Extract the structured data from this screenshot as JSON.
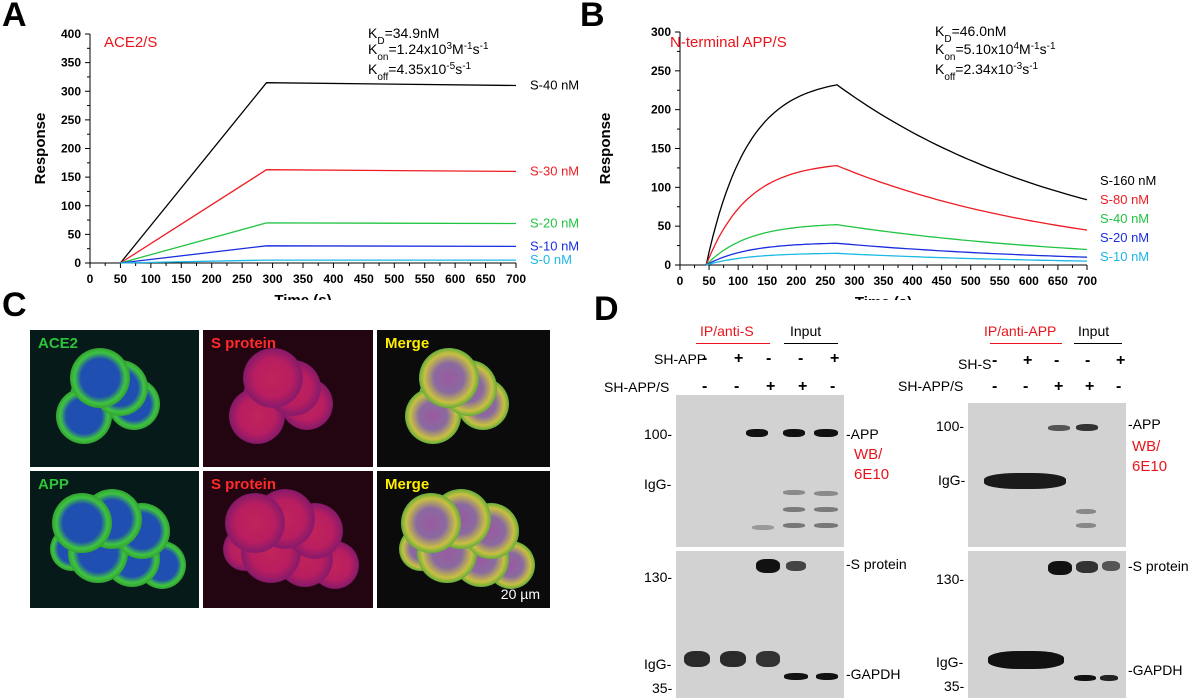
{
  "panels": {
    "a": "A",
    "b": "B",
    "c": "C",
    "d": "D"
  },
  "chart_data": [
    {
      "type": "line",
      "panel": "A",
      "label": "ACE2/S",
      "label_color": "#e8141b",
      "kinetics": [
        "K_D=34.9 nM",
        "K_on=1.24x10^3 M^-1 s^-1",
        "K_off=4.35x10^-5 s^-1"
      ],
      "xlabel": "Time (s)",
      "ylabel": "Response",
      "xlim": [
        0,
        700
      ],
      "ylim": [
        0,
        400
      ],
      "xticks": [
        0,
        50,
        100,
        150,
        200,
        250,
        300,
        350,
        400,
        450,
        500,
        550,
        600,
        650,
        700
      ],
      "yticks": [
        0,
        50,
        100,
        150,
        200,
        250,
        300,
        350,
        400
      ],
      "association_start": 50,
      "dissociation_start": 290,
      "kinetic_model": "linear",
      "series": [
        {
          "name": "S-40 nM",
          "color": "#000000",
          "peak": 315,
          "end": 310
        },
        {
          "name": "S-30 nM",
          "color": "#ee1c24",
          "peak": 163,
          "end": 160
        },
        {
          "name": "S-20 nM",
          "color": "#22c443",
          "peak": 70,
          "end": 69
        },
        {
          "name": "S-10 nM",
          "color": "#1a2ee0",
          "peak": 30,
          "end": 29
        },
        {
          "name": "S-0 nM",
          "color": "#1cb8e6",
          "peak": 5,
          "end": 5
        }
      ]
    },
    {
      "type": "line",
      "panel": "B",
      "label": "N-terminal APP/S",
      "label_color": "#e8141b",
      "kinetics": [
        "K_D=46.0 nM",
        "K_on=5.10x10^4 M^-1 s^-1",
        "K_off=2.34x10^-3 s^-1"
      ],
      "xlabel": "Time (s)",
      "ylabel": "Response",
      "xlim": [
        0,
        700
      ],
      "ylim": [
        0,
        300
      ],
      "xticks": [
        0,
        50,
        100,
        150,
        200,
        250,
        300,
        350,
        400,
        450,
        500,
        550,
        600,
        650,
        700
      ],
      "yticks": [
        0,
        50,
        100,
        150,
        200,
        250,
        300
      ],
      "association_start": 45,
      "dissociation_start": 270,
      "kinetic_model": "exponential",
      "series": [
        {
          "name": "S-160 nM",
          "color": "#000000",
          "peak": 232,
          "end": 84
        },
        {
          "name": "S-80 nM",
          "color": "#ee1c24",
          "peak": 128,
          "end": 45
        },
        {
          "name": "S-40 nM",
          "color": "#22c443",
          "peak": 52,
          "end": 20
        },
        {
          "name": "S-20 nM",
          "color": "#1a2ee0",
          "peak": 28,
          "end": 10
        },
        {
          "name": "S-10 nM",
          "color": "#1cb8e6",
          "peak": 15,
          "end": 5
        }
      ]
    }
  ],
  "microscopy": {
    "row1": [
      {
        "label": "ACE2",
        "label_color": "#2ec43a",
        "channel": "green"
      },
      {
        "label": "S protein",
        "label_color": "#ff2a2a",
        "channel": "red"
      },
      {
        "label": "Merge",
        "label_color": "#ffee00",
        "channel": "merge"
      }
    ],
    "row2": [
      {
        "label": "APP",
        "label_color": "#2ec43a",
        "channel": "green"
      },
      {
        "label": "S protein",
        "label_color": "#ff2a2a",
        "channel": "red"
      },
      {
        "label": "Merge",
        "label_color": "#ffee00",
        "channel": "merge"
      }
    ],
    "scale_bar": "20 µm"
  },
  "western": {
    "left": {
      "ip_header": "IP/anti-S",
      "input_header": "Input",
      "row1_label": "SH-APP",
      "row2_label": "SH-APP/S",
      "row1_signs": [
        "-",
        "+",
        "-",
        "-",
        "+"
      ],
      "row2_signs": [
        "-",
        "-",
        "+",
        "+",
        "-"
      ],
      "top_markers": [
        "100-",
        "IgG-"
      ],
      "bottom_markers": [
        "130-",
        "IgG-",
        "35-"
      ],
      "top_right": [
        "-APP"
      ],
      "wb": [
        "WB/",
        "6E10"
      ],
      "bottom_right": [
        "-S protein",
        "-GAPDH"
      ]
    },
    "right": {
      "ip_header": "IP/anti-APP",
      "input_header": "Input",
      "row1_label": "SH-S",
      "row2_label": "SH-APP/S",
      "row1_signs": [
        "-",
        "+",
        "-",
        "-",
        "+"
      ],
      "row2_signs": [
        "-",
        "-",
        "+",
        "+",
        "-"
      ],
      "top_markers": [
        "100-",
        "IgG-"
      ],
      "bottom_markers": [
        "130-",
        "IgG-",
        "35-"
      ],
      "top_right": [
        "-APP"
      ],
      "wb": [
        "WB/",
        "6E10"
      ],
      "bottom_right": [
        "-S protein",
        "-GAPDH"
      ]
    }
  }
}
